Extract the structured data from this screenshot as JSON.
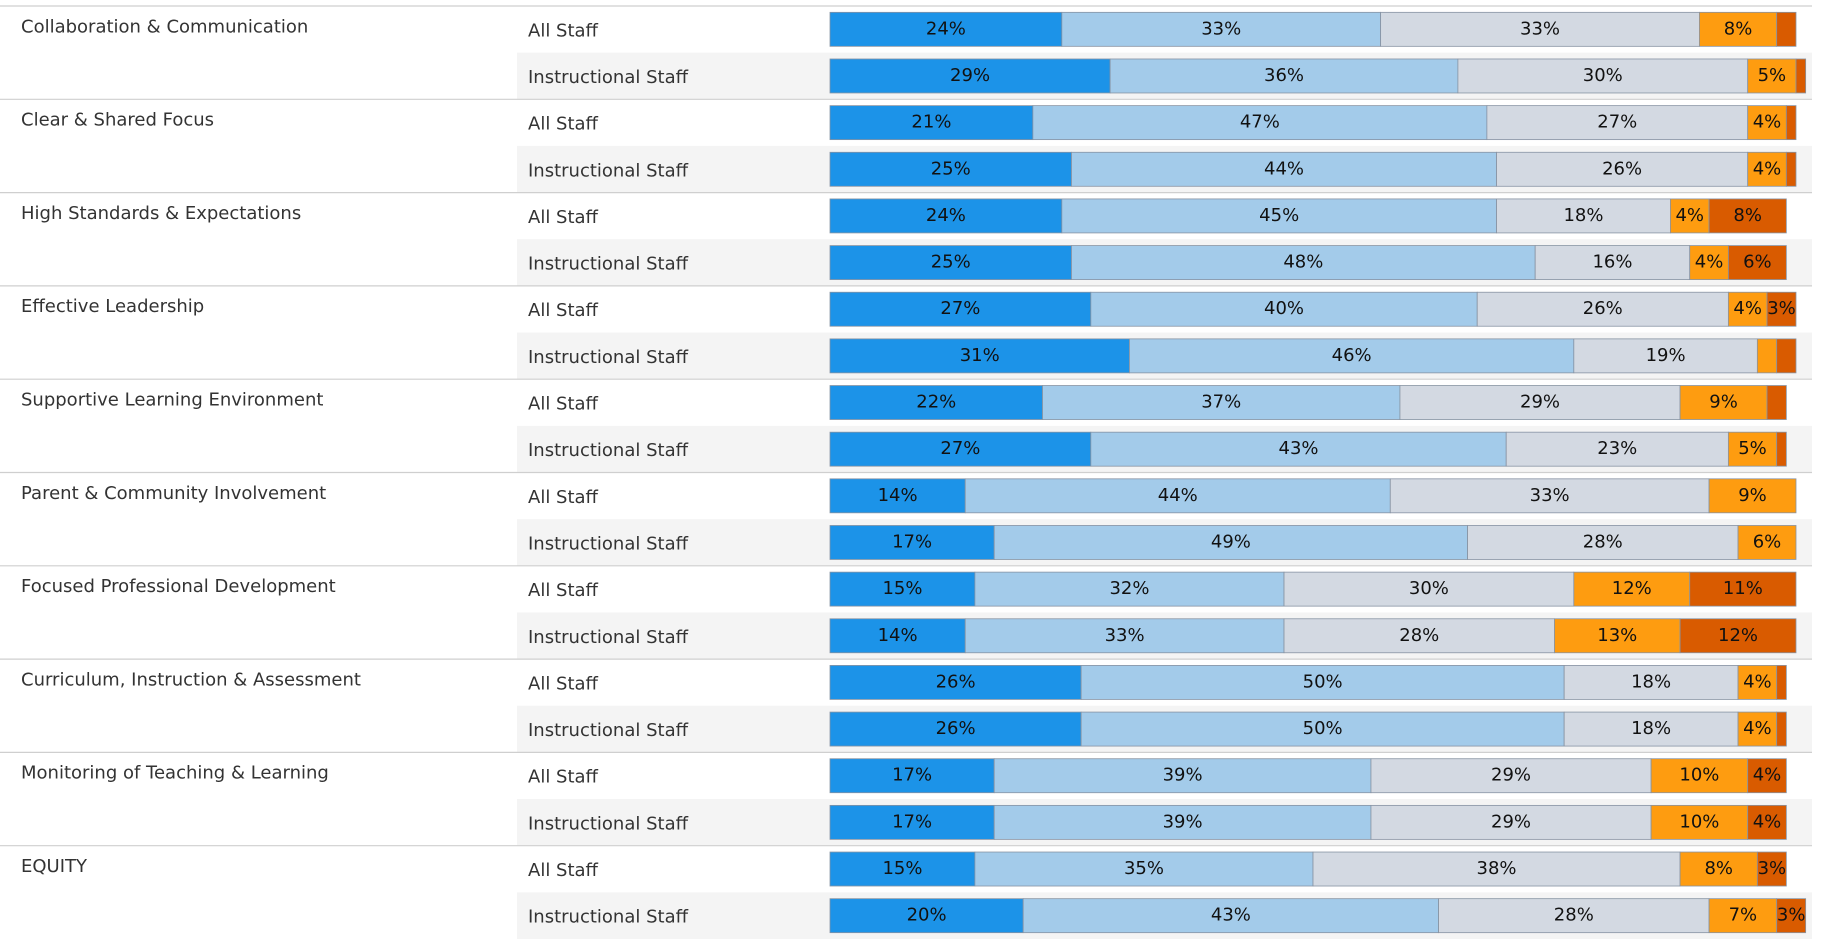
{
  "chart_data": {
    "type": "stacked_bar_h",
    "xlim": [
      0,
      100
    ],
    "groups": [
      "Collaboration & Communication",
      "Clear & Shared Focus",
      "High Standards & Expectations",
      "Effective Leadership",
      "Supportive Learning Environment",
      "Parent & Community Involvement",
      "Focused Professional Development",
      "Curriculum, Instruction & Assessment",
      "Monitoring of Teaching & Learning",
      "EQUITY"
    ],
    "categories": [
      "All Staff",
      "Instructional Staff",
      "All Staff",
      "Instructional Staff",
      "All Staff",
      "Instructional Staff",
      "All Staff",
      "Instructional Staff",
      "All Staff",
      "Instructional Staff",
      "All Staff",
      "Instructional Staff",
      "All Staff",
      "Instructional Staff",
      "All Staff",
      "Instructional Staff",
      "All Staff",
      "Instructional Staff",
      "All Staff",
      "Instructional Staff"
    ],
    "series": [
      {
        "color": "#1c93e8",
        "values": [
          24,
          29,
          21,
          25,
          24,
          25,
          27,
          31,
          22,
          27,
          14,
          17,
          15,
          14,
          26,
          26,
          17,
          17,
          15,
          20
        ],
        "value_labels": [
          "24%",
          "29%",
          "21%",
          "25%",
          "24%",
          "25%",
          "27%",
          "31%",
          "22%",
          "27%",
          "14%",
          "17%",
          "15%",
          "14%",
          "26%",
          "26%",
          "17%",
          "17%",
          "15%",
          "20%"
        ]
      },
      {
        "color": "#a3cbea",
        "values": [
          33,
          36,
          47,
          44,
          45,
          48,
          40,
          46,
          37,
          43,
          44,
          49,
          32,
          33,
          50,
          50,
          39,
          39,
          35,
          43
        ],
        "value_labels": [
          "33%",
          "36%",
          "47%",
          "44%",
          "45%",
          "48%",
          "40%",
          "46%",
          "37%",
          "43%",
          "44%",
          "49%",
          "32%",
          "33%",
          "50%",
          "50%",
          "39%",
          "39%",
          "35%",
          "43%"
        ]
      },
      {
        "color": "#d3d9e2",
        "values": [
          33,
          30,
          27,
          26,
          18,
          16,
          26,
          19,
          29,
          23,
          33,
          28,
          30,
          28,
          18,
          18,
          29,
          29,
          38,
          28
        ],
        "value_labels": [
          "33%",
          "30%",
          "27%",
          "26%",
          "18%",
          "16%",
          "26%",
          "19%",
          "29%",
          "23%",
          "33%",
          "28%",
          "30%",
          "28%",
          "18%",
          "18%",
          "29%",
          "29%",
          "38%",
          "28%"
        ]
      },
      {
        "color": "#fe9c10",
        "values": [
          8,
          5,
          4,
          4,
          4,
          4,
          4,
          2,
          9,
          5,
          9,
          6,
          12,
          13,
          4,
          4,
          10,
          10,
          8,
          7
        ],
        "value_labels": [
          "8%",
          "5%",
          "4%",
          "4%",
          "4%",
          "4%",
          "4%",
          null,
          "9%",
          "5%",
          "9%",
          "6%",
          "12%",
          "13%",
          "4%",
          "4%",
          "10%",
          "10%",
          "8%",
          "7%"
        ]
      },
      {
        "color": "#d95b00",
        "values": [
          2,
          1,
          1,
          1,
          8,
          6,
          3,
          2,
          2,
          1,
          0,
          0,
          11,
          12,
          1,
          1,
          4,
          4,
          3,
          3
        ],
        "value_labels": [
          null,
          null,
          null,
          null,
          "8%",
          "6%",
          "3%",
          null,
          null,
          null,
          null,
          null,
          "11%",
          "12%",
          null,
          null,
          "4%",
          "4%",
          "3%",
          "3%"
        ]
      }
    ]
  }
}
